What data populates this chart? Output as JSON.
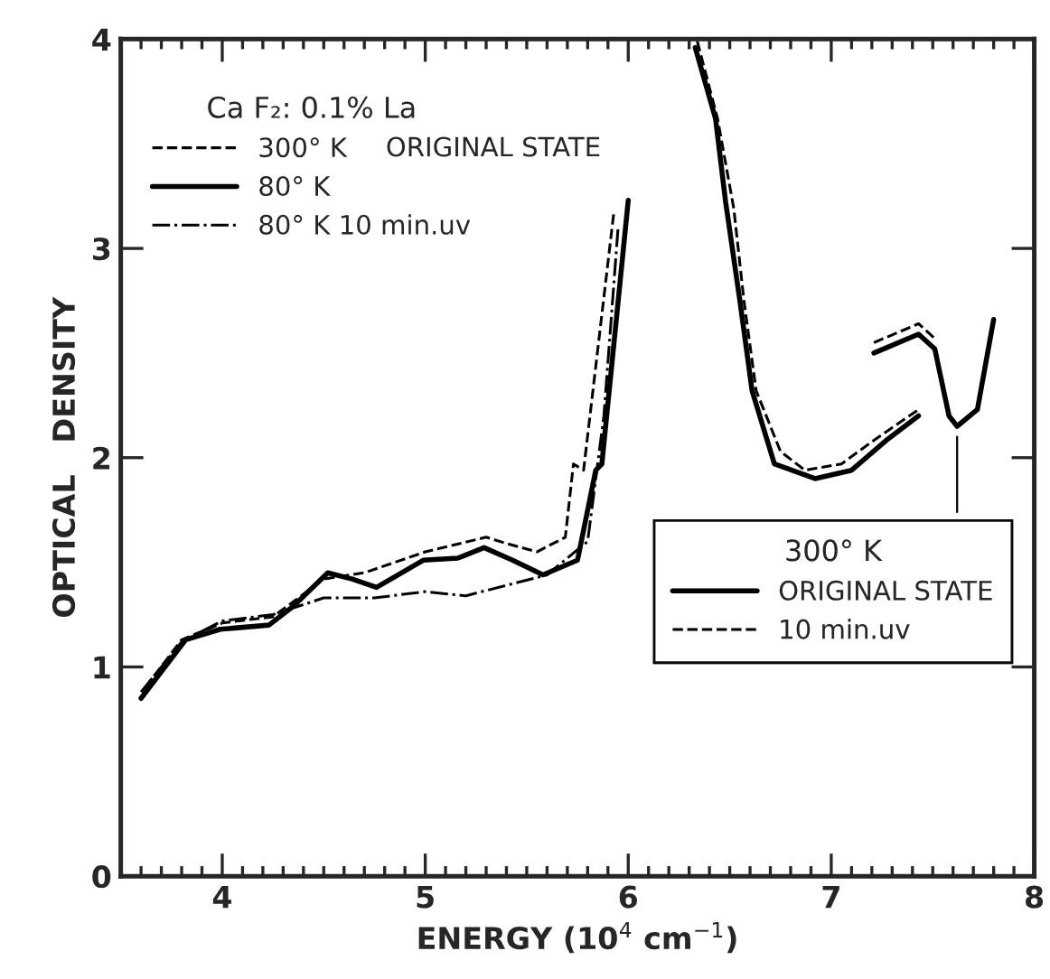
{
  "chart_data": {
    "type": "line",
    "xlabel": "ENERGY (10$^{4}$ cm$^{−1}$)",
    "ylabel": "OPTICAL   DENSITY",
    "legend_title": "Ca F₂: 0.1% La",
    "legend": "top left",
    "grid": false,
    "marker": "none",
    "annotations": [
      "ORIGINAL STATE",
      "300° K"
    ],
    "xlim": [
      3.5,
      8
    ],
    "xticks": [
      4,
      5,
      6,
      7,
      8
    ],
    "ylim": [
      0,
      4
    ],
    "yticks": [
      0,
      1,
      2,
      3,
      4
    ],
    "series": [
      {
        "name": "300° K",
        "color": "#000000",
        "line_style": "dashed",
        "x": [
          3.62,
          3.8,
          4.0,
          4.25,
          4.5,
          4.7,
          5.0,
          5.3,
          5.4,
          5.55,
          5.69,
          5.73,
          5.78,
          5.93
        ],
        "values": [
          0.9,
          1.13,
          1.21,
          1.24,
          1.42,
          1.45,
          1.55,
          1.62,
          1.59,
          1.55,
          1.62,
          1.97,
          1.94,
          3.18
        ]
      },
      {
        "name": "80° K",
        "color": "#000000",
        "line_style": "solid",
        "x": [
          3.6,
          3.82,
          3.99,
          4.23,
          4.35,
          4.52,
          4.64,
          4.76,
          4.99,
          5.16,
          5.29,
          5.43,
          5.58,
          5.75,
          5.84,
          5.87,
          6.0
        ],
        "values": [
          0.85,
          1.13,
          1.18,
          1.2,
          1.29,
          1.45,
          1.42,
          1.38,
          1.51,
          1.52,
          1.57,
          1.51,
          1.44,
          1.51,
          1.94,
          1.97,
          3.23
        ]
      },
      {
        "name": "80° K 10 min.uv",
        "color": "#000000",
        "line_style": "dashdot",
        "x": [
          3.6,
          3.8,
          4.0,
          4.25,
          4.5,
          4.75,
          5.0,
          5.2,
          5.4,
          5.6,
          5.8,
          5.88,
          5.95
        ],
        "values": [
          0.88,
          1.12,
          1.22,
          1.25,
          1.33,
          1.33,
          1.36,
          1.34,
          1.39,
          1.44,
          1.6,
          2.2,
          3.1
        ]
      },
      {
        "name": "ORIGINAL STATE",
        "color": "#000000",
        "line_style": "solid",
        "x": [
          6.33,
          6.43,
          6.48,
          6.55,
          6.61,
          6.72,
          6.92,
          7.1,
          7.28,
          7.43
        ],
        "values": [
          3.96,
          3.62,
          3.22,
          2.75,
          2.32,
          1.97,
          1.9,
          1.94,
          2.09,
          2.2
        ]
      },
      {
        "name": "10 min.uv",
        "color": "#000000",
        "line_style": "dashed",
        "x": [
          6.34,
          6.44,
          6.52,
          6.57,
          6.63,
          6.75,
          6.87,
          7.05,
          7.22,
          7.43
        ],
        "values": [
          3.99,
          3.62,
          3.19,
          2.75,
          2.32,
          2.03,
          1.94,
          1.97,
          2.09,
          2.23
        ]
      },
      {
        "color": "#000000",
        "line_style": "solid",
        "x": [
          7.21,
          7.43,
          7.51,
          7.58,
          7.62,
          7.72,
          7.8
        ],
        "values": [
          2.5,
          2.59,
          2.52,
          2.2,
          2.15,
          2.23,
          2.66
        ]
      },
      {
        "color": "#000000",
        "line_style": "dashed",
        "x": [
          7.21,
          7.43,
          7.51
        ],
        "values": [
          2.55,
          2.64,
          2.57
        ]
      },
      {
        "color": "#000000",
        "line_style": "solid",
        "x": [
          7.62,
          7.62
        ],
        "values": [
          1.74,
          2.1
        ]
      }
    ]
  }
}
